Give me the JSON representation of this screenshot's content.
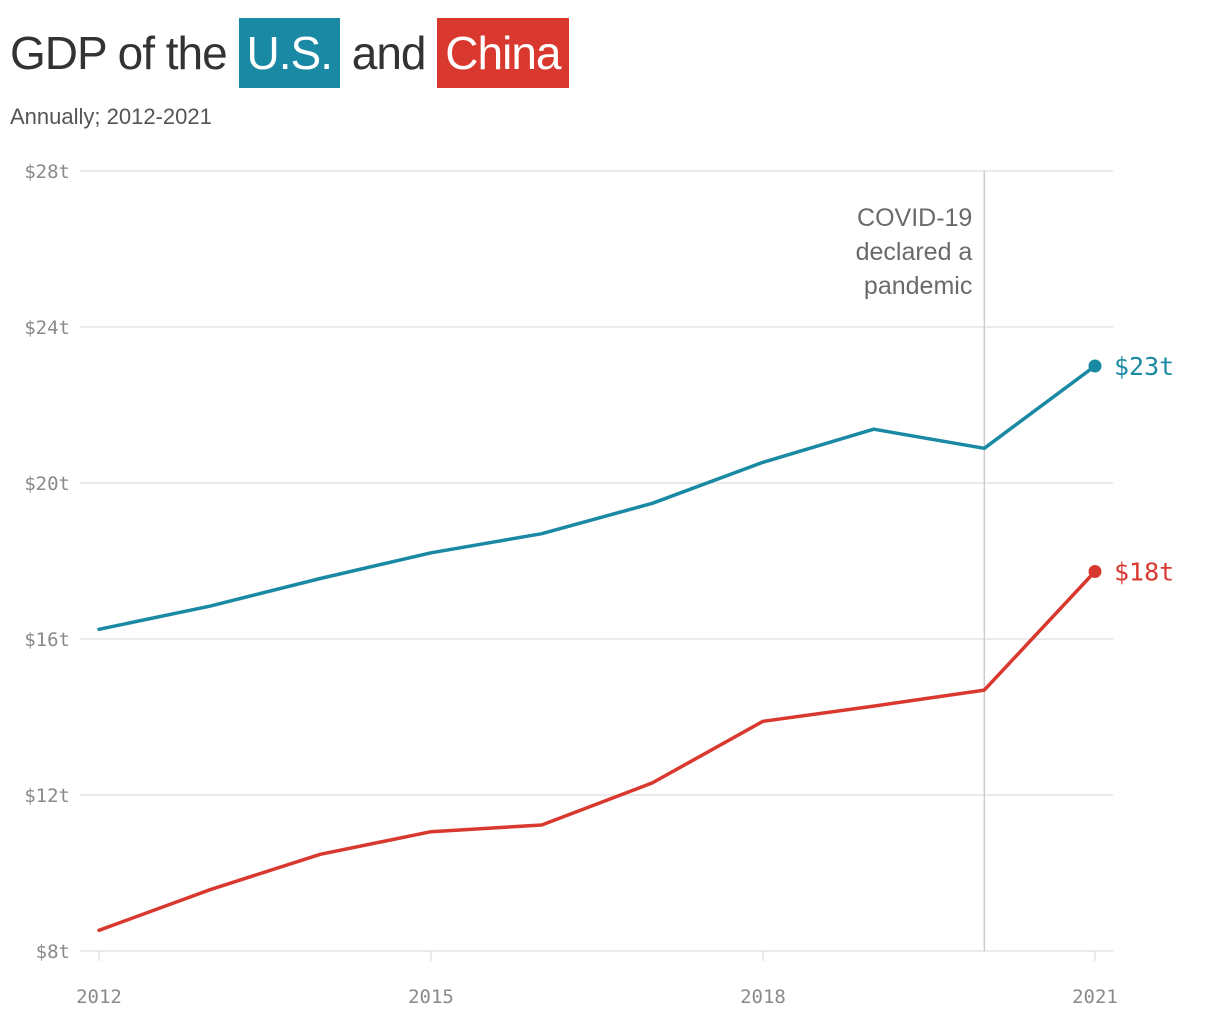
{
  "header": {
    "title_prefix": "GDP of the ",
    "title_us": "U.S.",
    "title_mid": " and ",
    "title_china": "China",
    "subtitle": "Annually; 2012-2021"
  },
  "colors": {
    "us": "#1a89a3",
    "china": "#d9382e",
    "grid": "#dddddd",
    "annotation_line": "#cccccc"
  },
  "chart_data": {
    "type": "line",
    "title": "GDP of the U.S. and China",
    "subtitle": "Annually; 2012-2021",
    "x": [
      2012,
      2013,
      2014,
      2015,
      2016,
      2017,
      2018,
      2019,
      2020,
      2021
    ],
    "xlim": [
      2012,
      2021
    ],
    "ylim": [
      8,
      28
    ],
    "y_ticks": [
      28,
      24,
      20,
      16,
      12,
      8
    ],
    "y_tick_labels": [
      "$28t",
      "$24t",
      "$20t",
      "$16t",
      "$12t",
      "$8t"
    ],
    "x_ticks": [
      2012,
      2015,
      2018,
      2021
    ],
    "x_tick_labels": [
      "2012",
      "2015",
      "2018",
      "2021"
    ],
    "grid": true,
    "series": [
      {
        "name": "U.S.",
        "color": "#1a89a3",
        "values": [
          16.25,
          16.84,
          17.55,
          18.21,
          18.7,
          19.48,
          20.53,
          21.38,
          20.89,
          23.0
        ],
        "end_label": "$23t"
      },
      {
        "name": "China",
        "color": "#d9382e",
        "values": [
          8.53,
          9.57,
          10.48,
          11.06,
          11.23,
          12.31,
          13.89,
          14.28,
          14.69,
          17.73
        ],
        "end_label": "$18t"
      }
    ],
    "annotations": [
      {
        "x": 2020,
        "lines": [
          "COVID-19",
          "declared a",
          "pandemic"
        ]
      }
    ]
  }
}
